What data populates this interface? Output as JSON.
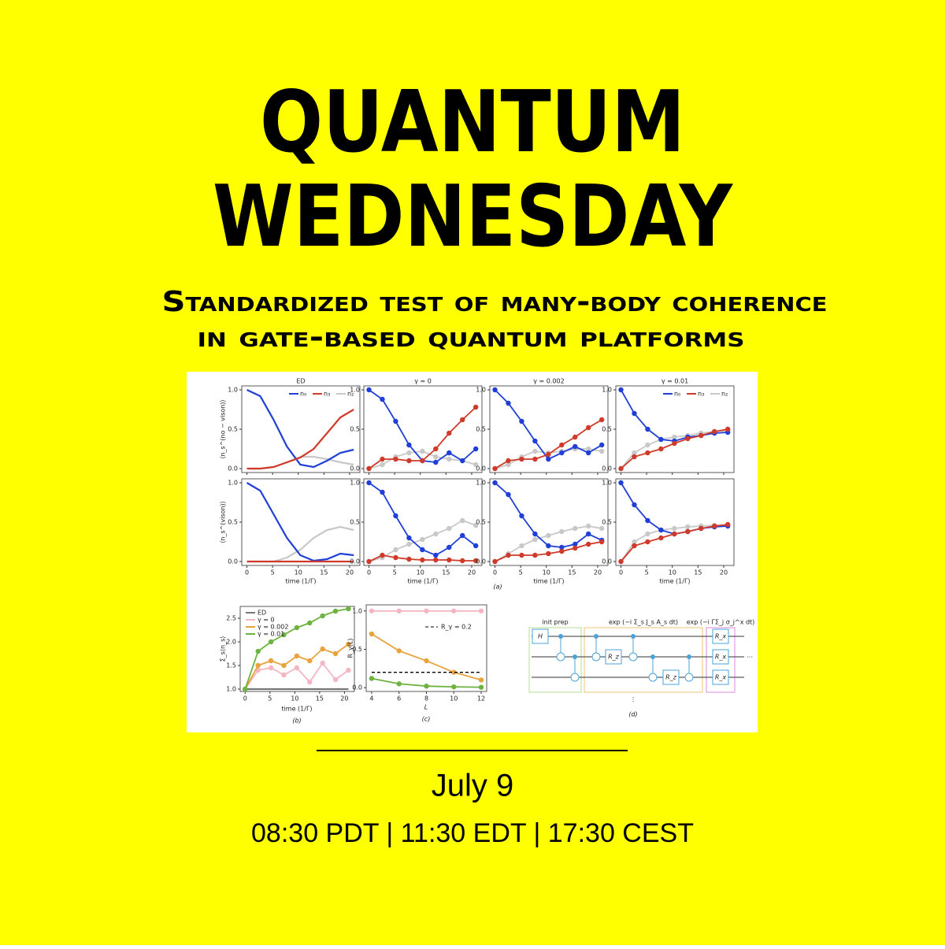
{
  "header": {
    "title_lines": [
      "QUANTUM",
      "WEDNESDAY"
    ],
    "subtitle_lines": [
      "Standardized test of many-body coherence",
      "in gate-based quantum platforms"
    ]
  },
  "figure": {
    "panel_a": {
      "label": "(a)",
      "column_titles": [
        "ED",
        "γ = 0",
        "γ = 0.002",
        "γ = 0.01"
      ],
      "row_y_labels": [
        "⟨n_s^(no − vison)⟩",
        "⟨n_s^(vison)⟩"
      ],
      "x_label": "time (1/Γ)",
      "xlim": [
        -1,
        22
      ],
      "ylim": [
        -0.05,
        1.05
      ],
      "xticks": [
        0,
        5,
        10,
        15,
        20
      ],
      "yticks": [
        {
          "value": 0,
          "label": "0.0"
        },
        {
          "value": 0.5,
          "label": "0.5"
        },
        {
          "value": 1,
          "label": "1.0"
        }
      ],
      "x": [
        0,
        2.6,
        5.2,
        7.8,
        10.4,
        13,
        15.6,
        18.2,
        20.8
      ],
      "styles": [
        {
          "name": "n₀",
          "color": "#1f3fd8"
        },
        {
          "name": "n₃",
          "color": "#d03a2a"
        },
        {
          "name": "n₂",
          "color": "#c8c8c8"
        }
      ],
      "rows": [
        [
          [
            [
              1,
              0.92,
              0.62,
              0.28,
              0.05,
              0.02,
              0.1,
              0.2,
              0.24
            ],
            [
              0,
              0,
              0.02,
              0.08,
              0.14,
              0.25,
              0.45,
              0.65,
              0.75
            ],
            [
              0,
              0,
              0.02,
              0.08,
              0.15,
              0.15,
              0.12,
              0.08,
              0.05
            ]
          ],
          [
            [
              1,
              0.88,
              0.6,
              0.3,
              0.1,
              0.08,
              0.2,
              0.1,
              0.25
            ],
            [
              0,
              0.12,
              0.12,
              0.1,
              0.1,
              0.25,
              0.45,
              0.62,
              0.78
            ],
            [
              0,
              0.05,
              0.15,
              0.2,
              0.22,
              0.15,
              0.12,
              0.1,
              0.05
            ]
          ],
          [
            [
              1,
              0.83,
              0.6,
              0.35,
              0.12,
              0.2,
              0.28,
              0.2,
              0.3
            ],
            [
              0,
              0.1,
              0.12,
              0.12,
              0.18,
              0.3,
              0.4,
              0.52,
              0.62
            ],
            [
              0,
              0.05,
              0.15,
              0.22,
              0.2,
              0.22,
              0.25,
              0.25,
              0.22
            ]
          ],
          [
            [
              1,
              0.7,
              0.5,
              0.37,
              0.35,
              0.4,
              0.42,
              0.45,
              0.46
            ],
            [
              0,
              0.15,
              0.2,
              0.25,
              0.32,
              0.38,
              0.42,
              0.47,
              0.5
            ],
            [
              0,
              0.2,
              0.3,
              0.37,
              0.4,
              0.42,
              0.45,
              0.47,
              0.48
            ]
          ]
        ],
        [
          [
            [
              1,
              0.9,
              0.6,
              0.3,
              0.08,
              0.01,
              0.03,
              0.1,
              0.08
            ],
            [
              0,
              0,
              0,
              0,
              0,
              0,
              0,
              0,
              0
            ],
            [
              0,
              0,
              0,
              0.05,
              0.15,
              0.3,
              0.4,
              0.44,
              0.4
            ]
          ],
          [
            [
              1,
              0.88,
              0.58,
              0.3,
              0.15,
              0.08,
              0.18,
              0.33,
              0.2
            ],
            [
              0,
              0.08,
              0.05,
              0.03,
              0.02,
              0.02,
              0.02,
              0.01,
              0.01
            ],
            [
              0,
              0.05,
              0.15,
              0.22,
              0.28,
              0.35,
              0.42,
              0.52,
              0.46
            ]
          ],
          [
            [
              1,
              0.85,
              0.58,
              0.35,
              0.2,
              0.18,
              0.22,
              0.35,
              0.27
            ],
            [
              0,
              0.08,
              0.08,
              0.08,
              0.1,
              0.13,
              0.17,
              0.22,
              0.25
            ],
            [
              0,
              0.1,
              0.2,
              0.28,
              0.33,
              0.38,
              0.42,
              0.45,
              0.42
            ]
          ],
          [
            [
              1,
              0.72,
              0.52,
              0.4,
              0.35,
              0.38,
              0.42,
              0.44,
              0.45
            ],
            [
              0,
              0.2,
              0.25,
              0.3,
              0.35,
              0.38,
              0.42,
              0.45,
              0.47
            ],
            [
              0,
              0.25,
              0.35,
              0.4,
              0.42,
              0.44,
              0.45,
              0.46,
              0.46
            ]
          ]
        ]
      ]
    },
    "panel_b": {
      "label": "(b)",
      "x_label": "time (1/Γ)",
      "y_label": "Σ_s⟨n_s⟩",
      "xlim": [
        -1,
        22
      ],
      "ylim": [
        0.95,
        2.75
      ],
      "xticks": [
        0,
        5,
        10,
        15,
        20
      ],
      "yticks": [
        {
          "value": 1,
          "label": "1.0"
        },
        {
          "value": 1.5,
          "label": "1.5"
        },
        {
          "value": 2,
          "label": "2.0"
        },
        {
          "value": 2.5,
          "label": "2.5"
        }
      ],
      "x": [
        0,
        2.6,
        5.2,
        7.8,
        10.4,
        13,
        15.6,
        18.2,
        20.8
      ],
      "series": [
        {
          "name": "ED",
          "color": "#777777",
          "values": [
            1,
            1,
            1,
            1,
            1,
            1,
            1,
            1,
            1
          ]
        },
        {
          "name": "γ = 0",
          "color": "#f4b6c2",
          "values": [
            1,
            1.4,
            1.45,
            1.3,
            1.45,
            1.15,
            1.55,
            1.2,
            1.4
          ]
        },
        {
          "name": "γ = 0.002",
          "color": "#e8a33c",
          "values": [
            1,
            1.5,
            1.6,
            1.5,
            1.7,
            1.6,
            1.85,
            1.75,
            1.95
          ]
        },
        {
          "name": "γ = 0.01",
          "color": "#6cb33f",
          "values": [
            1,
            1.8,
            2.0,
            2.15,
            2.3,
            2.4,
            2.55,
            2.65,
            2.7
          ]
        }
      ]
    },
    "panel_c": {
      "label": "(c)",
      "x_label": "L",
      "y_label": "R_γ(L)",
      "xlim": [
        3.6,
        12.4
      ],
      "ylim": [
        -0.05,
        1.08
      ],
      "xticks": [
        4,
        6,
        8,
        10,
        12
      ],
      "yticks": [
        {
          "value": 0,
          "label": "0.0"
        },
        {
          "value": 0.5,
          "label": "0.5"
        },
        {
          "value": 1,
          "label": "1.0"
        }
      ],
      "x": [
        4,
        6,
        8,
        10,
        12
      ],
      "threshold": {
        "value": 0.2,
        "label": "R_γ = 0.2"
      },
      "series": [
        {
          "color": "#f4b6c2",
          "values": [
            1,
            1,
            1,
            1,
            1
          ]
        },
        {
          "color": "#e8a33c",
          "values": [
            0.7,
            0.48,
            0.35,
            0.2,
            0.1
          ]
        },
        {
          "color": "#6cb33f",
          "values": [
            0.12,
            0.05,
            0.02,
            0.01,
            0.005
          ]
        }
      ]
    },
    "panel_d": {
      "label": "(d)",
      "block_titles": [
        "init prep",
        "exp (−i Σ_s J_s A_s dt)",
        "exp (−i ΓΣ_j σ_j^x dt)"
      ],
      "gates": {
        "h": "H",
        "rz": "R_z",
        "rx": "R_x"
      },
      "dots_v": "⋮",
      "dots_h": "⋯"
    }
  },
  "footer": {
    "date": "July 9",
    "times": "08:30 PDT | 11:30 EDT | 17:30 CEST"
  }
}
